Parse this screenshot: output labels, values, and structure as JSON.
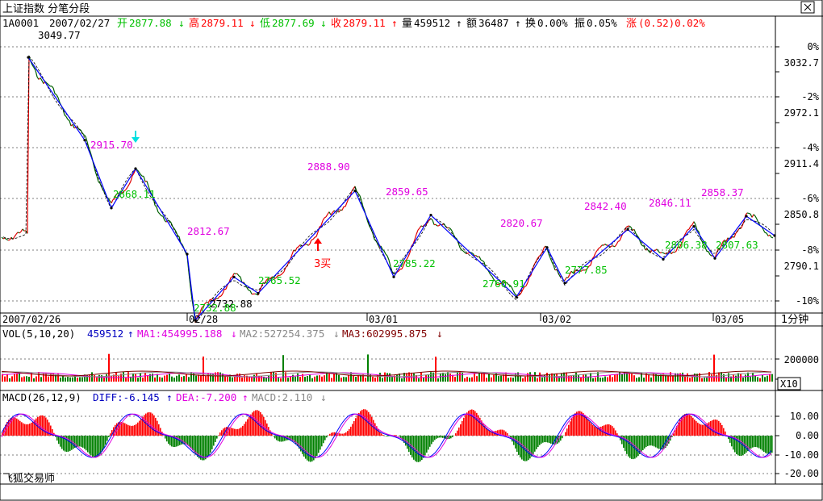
{
  "window": {
    "title": "上证指数 分笔分段",
    "close_icon": "close-icon"
  },
  "quote": {
    "code": "1A0001",
    "date": "2007/02/27",
    "open_label": "开",
    "open": "2877.88",
    "high_label": "高",
    "high": "2879.11",
    "low_label": "低",
    "low": "2877.69",
    "close_label": "收",
    "close": "2879.11",
    "volume_label": "量",
    "volume": "459512",
    "amount_label": "额",
    "amount": "36487",
    "turnover_label": "换",
    "turnover": "0.00%",
    "amplitude_label": "振",
    "amplitude": "0.05%",
    "change_label": "涨",
    "change": "(0.52)0.02%"
  },
  "price_axis": {
    "right_labels": [
      "0%",
      "3032.7",
      "-2%",
      "2972.1",
      "-4%",
      "2911.4",
      "-6%",
      "2850.8",
      "-8%",
      "2790.1",
      "-10%"
    ]
  },
  "annotations": {
    "top": "3049.77",
    "peaks": [
      "2915.70",
      "2812.67",
      "2888.90",
      "2859.65",
      "2820.67",
      "2842.40",
      "2846.11",
      "2858.37"
    ],
    "troughs": [
      "2868.11",
      "2732.88",
      "2765.52",
      "2785.22",
      "2760.91",
      "2777.85",
      "2806.38",
      "2807.63"
    ],
    "bottom_overlap": "2732.88",
    "buy_signal": "3买"
  },
  "time_axis": {
    "labels": [
      "2007/02/26",
      "02/28",
      "03/01",
      "03/02",
      "03/05"
    ],
    "period": "1分钟"
  },
  "volume_panel": {
    "title": "VOL(5,10,20)",
    "value": "459512",
    "ma1": "MA1:454995.188",
    "ma2": "MA2:527254.375",
    "ma3": "MA3:602995.875",
    "axis_labels": [
      "200000"
    ],
    "scale": "X10"
  },
  "macd_panel": {
    "title": "MACD(26,12,9)",
    "diff": "DIFF:-6.145",
    "dea": "DEA:-7.200",
    "macd": "MACD:2.110",
    "axis_labels": [
      "10.00",
      "0.00",
      "-10.00",
      "-20.00"
    ]
  },
  "footer": {
    "brand": "飞狐交易师"
  },
  "colors": {
    "magenta": "#e000e0",
    "green": "#00c000",
    "blue": "#0000ff",
    "red": "#ff0000",
    "up_bar": "#ff0000",
    "down_bar": "#008000"
  },
  "chart_data": {
    "type": "line",
    "title": "上证指数 分笔分段",
    "x_labels": [
      "2007/02/26",
      "02/28",
      "03/01",
      "03/02",
      "03/05"
    ],
    "y_range": [
      2760,
      3060
    ],
    "segments_pivots": [
      3049.77,
      2915.7,
      2868.11,
      2812.67,
      2732.88,
      2765.52,
      2888.9,
      2785.22,
      2859.65,
      2760.91,
      2820.67,
      2777.85,
      2842.4,
      2806.38,
      2846.11,
      2807.63,
      2858.37
    ],
    "volume_ma": {
      "MA1": 454995.188,
      "MA2": 527254.375,
      "MA3": 602995.875
    },
    "macd": {
      "DIFF": -6.145,
      "DEA": -7.2,
      "MACD": 2.11
    }
  }
}
